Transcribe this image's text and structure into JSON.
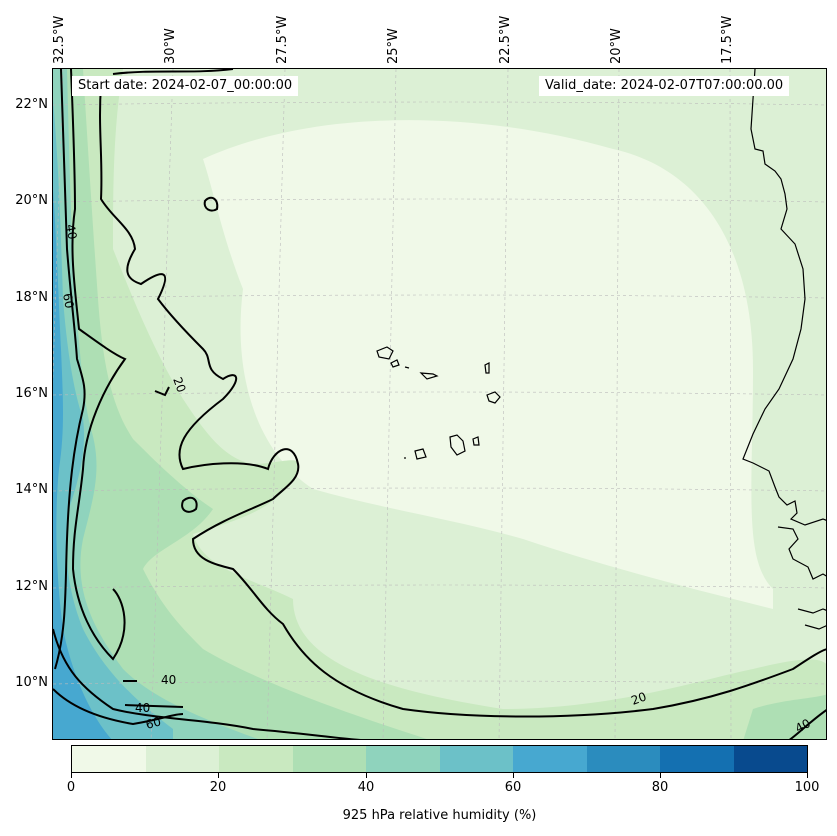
{
  "map": {
    "start_date": "Start date: 2024-02-07_00:00:00",
    "valid_date": "Valid_date: 2024-02-07T07:00:00.00",
    "lon_labels": [
      "32.5°W",
      "30°W",
      "27.5°W",
      "25°W",
      "22.5°W",
      "20°W",
      "17.5°W"
    ],
    "lat_labels": [
      "22°N",
      "20°N",
      "18°N",
      "16°N",
      "14°N",
      "12°N",
      "10°N"
    ],
    "contour_labels": [
      "40",
      "60",
      "20",
      "40",
      "40",
      "60",
      "20",
      "40"
    ],
    "colors": {
      "bin_0_10": "#f0f9e8",
      "bin_10_20": "#dcf0d5",
      "bin_20_30": "#c9e9c0",
      "bin_30_40": "#aedfb4",
      "bin_40_50": "#8fd3bd",
      "bin_50_60": "#6cc1c8",
      "bin_60_70": "#47a8d0",
      "bin_70_80": "#2b8cbe",
      "bin_80_90": "#1470b1",
      "bin_90_100": "#084a8e"
    }
  },
  "colorbar": {
    "label": "925 hPa relative humidity (%)",
    "ticks": [
      "0",
      "20",
      "40",
      "60",
      "80",
      "100"
    ]
  }
}
